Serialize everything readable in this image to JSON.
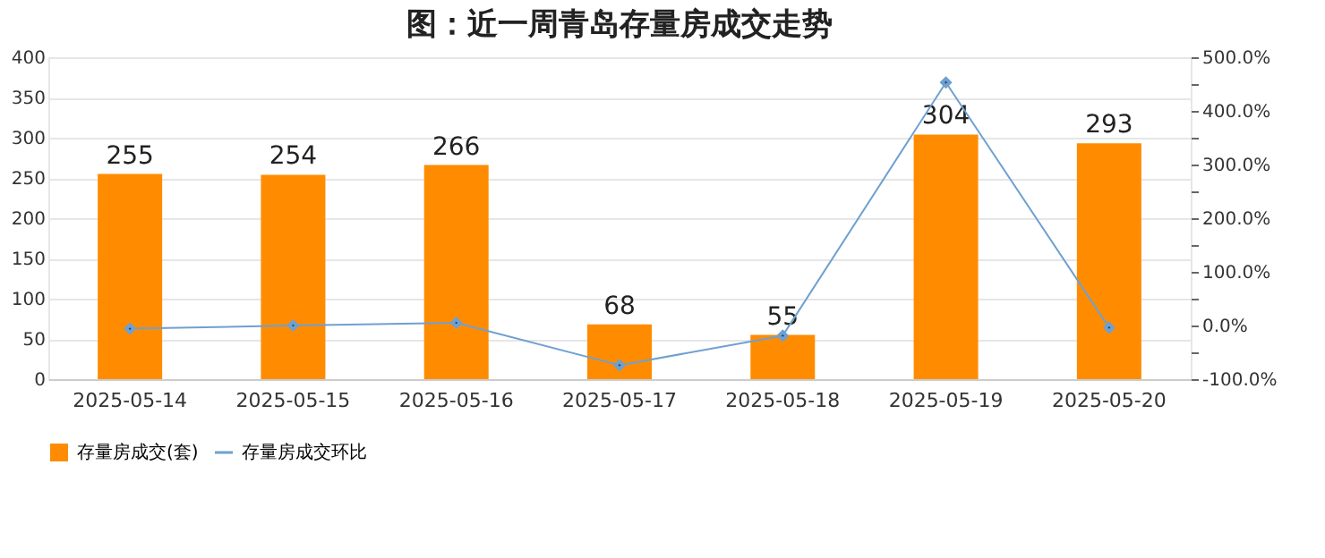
{
  "chart_data": {
    "type": "bar",
    "title": "图：近一周青岛存量房成交走势",
    "categories": [
      "2025-05-14",
      "2025-05-15",
      "2025-05-16",
      "2025-05-17",
      "2025-05-18",
      "2025-05-19",
      "2025-05-20"
    ],
    "series": [
      {
        "name": "存量房成交(套)",
        "color": "#ff8c00",
        "values": [
          255,
          254,
          266,
          68,
          55,
          304,
          293
        ],
        "value_labels": [
          "255",
          "254",
          "266",
          "68",
          "55",
          "304",
          "293"
        ]
      },
      {
        "name": "存量房成交环比",
        "type": "line",
        "axis": "y2",
        "color": "#6fa0d0",
        "marker": "diamond",
        "values": [
          -6,
          0,
          5,
          -74,
          -19,
          453,
          -4
        ]
      }
    ],
    "ylim": [
      0,
      400
    ],
    "yticks": [
      0,
      50,
      100,
      150,
      200,
      250,
      300,
      350,
      400
    ],
    "y2lim": [
      -100,
      500
    ],
    "y2ticks": [
      {
        "value": -100,
        "label": "-100.0%"
      },
      {
        "value": -50,
        "label": null
      },
      {
        "value": 0,
        "label": "0.0%"
      },
      {
        "value": 50,
        "label": null
      },
      {
        "value": 100,
        "label": "100.0%"
      },
      {
        "value": 150,
        "label": null
      },
      {
        "value": 200,
        "label": "200.0%"
      },
      {
        "value": 250,
        "label": null
      },
      {
        "value": 300,
        "label": "300.0%"
      },
      {
        "value": 350,
        "label": null
      },
      {
        "value": 400,
        "label": "400.0%"
      },
      {
        "value": 450,
        "label": null
      },
      {
        "value": 500,
        "label": "500.0%"
      }
    ],
    "grid": "y",
    "legend": "bottom"
  }
}
